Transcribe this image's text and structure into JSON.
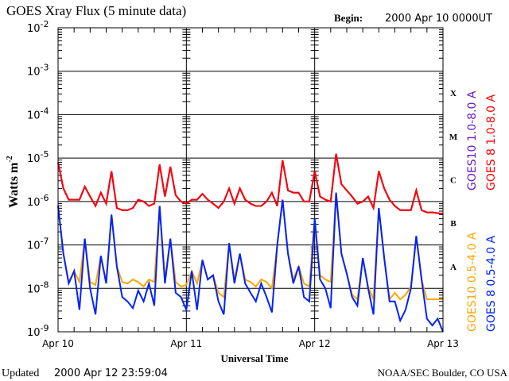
{
  "chart_data": {
    "type": "line",
    "title": "GOES Xray Flux (5 minute data)",
    "begin_label": "Begin:",
    "begin_value": "2000 Apr 10 0000UT",
    "ylabel": "Watts m",
    "ylabel_exponent": "-2",
    "xlabel": "Universal Time",
    "y_scale": "log",
    "ylim": [
      1e-09,
      0.01
    ],
    "y_tick_base": "10",
    "y_tick_exponents": [
      "-2",
      "-3",
      "-4",
      "-5",
      "-6",
      "-7",
      "-8",
      "-9"
    ],
    "x_unit": "hours since 2000 Apr 10 00:00 UT",
    "xlim": [
      0,
      72
    ],
    "x_tick_labels": [
      "Apr 10",
      "Apr 11",
      "Apr 12",
      "Apr 13"
    ],
    "flare_classes": [
      "X",
      "M",
      "C",
      "B",
      "A"
    ],
    "grid": "horizontal lines at each decade",
    "legend_placement": "right, rotated",
    "x_hours": [
      0,
      1,
      2,
      3,
      4,
      5,
      6,
      7,
      8,
      9,
      10,
      11,
      12,
      13,
      14,
      15,
      16,
      17,
      18,
      19,
      20,
      21,
      22,
      23,
      24,
      25,
      26,
      27,
      28,
      29,
      30,
      31,
      32,
      33,
      34,
      35,
      36,
      37,
      38,
      39,
      40,
      41,
      42,
      43,
      44,
      45,
      46,
      47,
      48,
      49,
      50,
      51,
      52,
      53,
      54,
      55,
      56,
      57,
      58,
      59,
      60,
      61,
      62,
      63,
      64,
      65,
      66,
      67,
      68,
      69,
      70,
      71,
      72
    ],
    "series": [
      {
        "name": "GOES10 1.0-8.0 A",
        "color": "#6a1ccc",
        "values": [
          7.9e-06,
          2e-06,
          1.1e-06,
          1.1e-06,
          1.1e-06,
          2.2e-06,
          1.3e-06,
          7.9e-07,
          1.6e-06,
          8.9e-07,
          5e-06,
          7.1e-07,
          6.3e-07,
          6.3e-07,
          7.1e-07,
          1.1e-06,
          1e-06,
          7.9e-07,
          8.9e-07,
          7.1e-06,
          1.3e-06,
          6.3e-06,
          1.4e-06,
          1e-06,
          8.9e-07,
          1.1e-06,
          1.1e-06,
          1.5e-06,
          1.1e-06,
          8.9e-07,
          7.1e-07,
          1e-06,
          2e-06,
          8.9e-07,
          2e-06,
          1.1e-06,
          8.9e-07,
          7.9e-07,
          7.9e-07,
          1e-06,
          1.6e-06,
          7.9e-07,
          8.9e-06,
          1.8e-06,
          1.6e-06,
          1.6e-06,
          1e-06,
          1e-06,
          5e-06,
          1.3e-06,
          1.1e-06,
          1e-06,
          1.26e-05,
          2.5e-06,
          1.8e-06,
          1.3e-06,
          8.9e-07,
          1e-06,
          1.3e-06,
          7.1e-07,
          5e-06,
          2e-06,
          1.1e-06,
          7.9e-07,
          6.3e-07,
          6.3e-07,
          6.3e-07,
          1.8e-06,
          6.3e-07,
          5.6e-07,
          5.6e-07,
          5.4e-07,
          5.2e-07
        ]
      },
      {
        "name": "GOES 8 1.0-8.0 A",
        "color": "#ff0000",
        "values": [
          7.9e-06,
          2e-06,
          1.1e-06,
          1.1e-06,
          1.1e-06,
          2.2e-06,
          1.3e-06,
          7.9e-07,
          1.6e-06,
          8.9e-07,
          5e-06,
          7.1e-07,
          6.3e-07,
          6.3e-07,
          7.1e-07,
          1.1e-06,
          1e-06,
          7.9e-07,
          8.9e-07,
          7.1e-06,
          1.3e-06,
          6.3e-06,
          1.4e-06,
          1e-06,
          8.9e-07,
          1.1e-06,
          1.1e-06,
          1.5e-06,
          1.1e-06,
          8.9e-07,
          7.1e-07,
          1e-06,
          2e-06,
          8.9e-07,
          2e-06,
          1.1e-06,
          8.9e-07,
          7.9e-07,
          7.9e-07,
          1e-06,
          1.6e-06,
          7.9e-07,
          8.9e-06,
          1.8e-06,
          1.6e-06,
          1.6e-06,
          1e-06,
          1e-06,
          5e-06,
          1.3e-06,
          1.1e-06,
          1e-06,
          1.26e-05,
          2.5e-06,
          1.8e-06,
          1.3e-06,
          8.9e-07,
          1e-06,
          1.3e-06,
          7.1e-07,
          5e-06,
          2e-06,
          1.1e-06,
          7.9e-07,
          6.3e-07,
          6.3e-07,
          6.3e-07,
          1.8e-06,
          6.3e-07,
          5.6e-07,
          5.6e-07,
          5.4e-07,
          5.2e-07
        ]
      },
      {
        "name": "GOES10 0.5-4.0 A",
        "color": "#ffa500",
        "values": [
          7.9e-07,
          6.3e-08,
          1.4e-08,
          2.5e-08,
          1.4e-08,
          1.4e-07,
          1.4e-08,
          1.2e-08,
          5.6e-08,
          1.4e-08,
          5e-07,
          3.2e-08,
          1.4e-08,
          1.3e-08,
          1.6e-08,
          1.4e-08,
          1.1e-08,
          1.6e-08,
          1.4e-08,
          7.9e-07,
          1.6e-08,
          1.4e-07,
          1.4e-08,
          1.1e-08,
          1.2e-08,
          2.5e-08,
          1.3e-08,
          4.5e-08,
          1.6e-08,
          2e-08,
          7.9e-09,
          6.3e-09,
          1.1e-07,
          1.6e-08,
          6.3e-08,
          1.6e-08,
          1.4e-08,
          1.1e-08,
          1.6e-08,
          1.4e-08,
          1e-08,
          1e-07,
          1.1e-06,
          6.3e-08,
          1.6e-08,
          3.2e-08,
          1.3e-08,
          1.1e-08,
          4e-07,
          2e-08,
          1.6e-08,
          1.4e-08,
          1.6e-06,
          6.3e-08,
          2.2e-08,
          7.1e-09,
          5.6e-09,
          5e-08,
          1.1e-08,
          5.6e-09,
          7.1e-07,
          5e-08,
          5.6e-09,
          7.9e-09,
          5.6e-09,
          7.1e-09,
          1.1e-08,
          1.6e-07,
          1.6e-08,
          5.6e-09,
          5.6e-09,
          5.6e-09,
          5.6e-09
        ]
      },
      {
        "name": "GOES 8 0.5-4.0 A",
        "color": "#0022ff",
        "values": [
          7.9e-07,
          6.3e-08,
          1.3e-08,
          2.5e-08,
          3.2e-09,
          1.4e-07,
          1e-08,
          2.5e-09,
          5.6e-08,
          1.3e-08,
          5e-07,
          3.2e-08,
          6.3e-09,
          5e-09,
          3.5e-09,
          8.9e-09,
          5e-09,
          1.3e-08,
          4e-09,
          7.9e-07,
          1.3e-08,
          1.4e-07,
          7.9e-09,
          6.3e-09,
          3.2e-09,
          2.5e-08,
          3.2e-09,
          4.5e-08,
          1.6e-08,
          2e-08,
          5e-09,
          2.5e-09,
          1.1e-07,
          1.3e-08,
          6.3e-08,
          1.3e-08,
          7.9e-09,
          5e-09,
          1.3e-08,
          6.3e-09,
          2.8e-09,
          1e-07,
          1.1e-06,
          6.3e-08,
          1.3e-08,
          3.2e-08,
          6.3e-09,
          5e-09,
          4e-07,
          1.6e-08,
          1e-08,
          3.5e-09,
          1.6e-06,
          6.3e-08,
          2.2e-08,
          6.3e-09,
          4e-09,
          5e-08,
          1e-08,
          2.5e-09,
          7.1e-07,
          5e-08,
          5e-09,
          5e-09,
          1.8e-09,
          3.2e-09,
          1e-08,
          1.6e-07,
          1.6e-08,
          2e-09,
          1.4e-09,
          2e-09,
          1e-09
        ]
      }
    ]
  },
  "footer": {
    "updated_label": "Updated",
    "updated_value": "2000 Apr 12 23:59:04",
    "credit": "NOAA/SEC Boulder, CO USA"
  }
}
